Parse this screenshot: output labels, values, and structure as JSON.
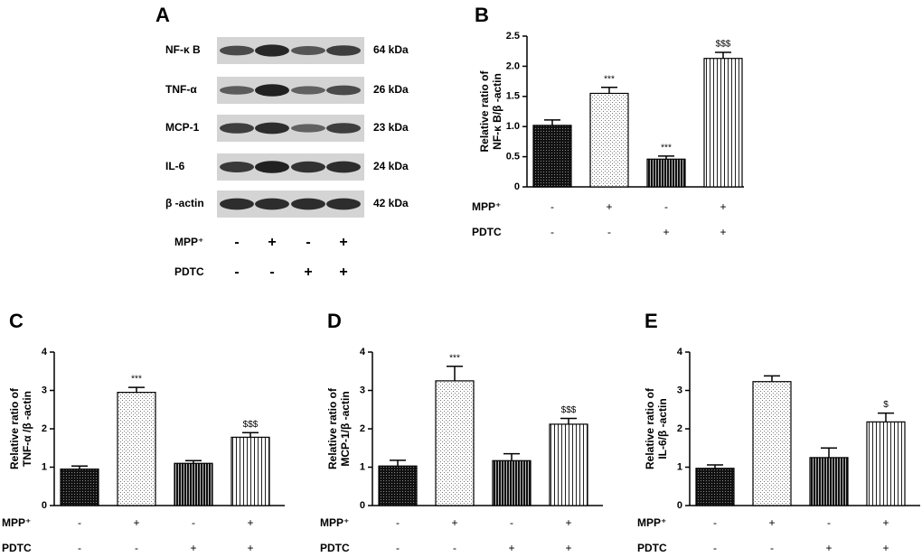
{
  "blot": {
    "panel": "A",
    "rows": [
      {
        "label": "NF-κ B",
        "size": "64 kDa"
      },
      {
        "label": "TNF-α",
        "size": "26 kDa"
      },
      {
        "label": "MCP-1",
        "size": "23 kDa"
      },
      {
        "label": "IL-6",
        "size": "24 kDa"
      },
      {
        "label": "β -actin",
        "size": "42 kDa"
      }
    ],
    "conditions": [
      {
        "name": "MPP⁺",
        "signs": [
          "-",
          "+",
          "-",
          "+"
        ]
      },
      {
        "name": "PDTC",
        "signs": [
          "-",
          "-",
          "+",
          "+"
        ]
      }
    ]
  },
  "chart_data": [
    {
      "type": "bar",
      "panel": "B",
      "ylabel": [
        "Relative ratio of",
        "NF-κ B/β -actin"
      ],
      "values": [
        1.02,
        1.55,
        0.46,
        2.13
      ],
      "errors": [
        0.09,
        0.1,
        0.05,
        0.1
      ],
      "annotations": [
        null,
        "***",
        "***",
        "$$$"
      ],
      "patterns": [
        "dark-dots",
        "light-dots",
        "dark-stripes",
        "light-stripes"
      ],
      "ylim": [
        0,
        2.5
      ],
      "yticks": [
        0,
        0.5,
        {
          "value": 1,
          "label": "1.0"
        },
        1.5,
        {
          "value": 2,
          "label": "2.0"
        },
        2.5
      ],
      "conditions": [
        {
          "name": "MPP⁺",
          "signs": [
            "-",
            "+",
            "-",
            "+"
          ]
        },
        {
          "name": "PDTC",
          "signs": [
            "-",
            "-",
            "+",
            "+"
          ]
        }
      ]
    },
    {
      "type": "bar",
      "panel": "C",
      "ylabel": [
        "Relative ratio of",
        "TNF-α /β -actin"
      ],
      "values": [
        0.95,
        2.95,
        1.1,
        1.78
      ],
      "errors": [
        0.08,
        0.13,
        0.07,
        0.12
      ],
      "annotations": [
        null,
        "***",
        null,
        "$$$"
      ],
      "patterns": [
        "dark-dots",
        "light-dots",
        "dark-stripes",
        "light-stripes"
      ],
      "ylim": [
        0,
        4
      ],
      "yticks": [
        0,
        1,
        2,
        3,
        4
      ],
      "conditions": [
        {
          "name": "MPP⁺",
          "signs": [
            "-",
            "+",
            "-",
            "+"
          ]
        },
        {
          "name": "PDTC",
          "signs": [
            "-",
            "-",
            "+",
            "+"
          ]
        }
      ]
    },
    {
      "type": "bar",
      "panel": "D",
      "ylabel": [
        "Relative ratio of",
        "MCP-1/β -actin"
      ],
      "values": [
        1.03,
        3.25,
        1.17,
        2.12
      ],
      "errors": [
        0.15,
        0.38,
        0.18,
        0.15
      ],
      "annotations": [
        null,
        "***",
        null,
        "$$$"
      ],
      "patterns": [
        "dark-dots",
        "light-dots",
        "dark-stripes",
        "light-stripes"
      ],
      "ylim": [
        0,
        4
      ],
      "yticks": [
        0,
        1,
        2,
        3,
        4
      ],
      "conditions": [
        {
          "name": "MPP⁺",
          "signs": [
            "-",
            "+",
            "-",
            "+"
          ]
        },
        {
          "name": "PDTC",
          "signs": [
            "-",
            "-",
            "+",
            "+"
          ]
        }
      ]
    },
    {
      "type": "bar",
      "panel": "E",
      "ylabel": [
        "Relative ratio of",
        "IL-6/β -actin"
      ],
      "values": [
        0.97,
        3.23,
        1.25,
        2.18
      ],
      "errors": [
        0.09,
        0.15,
        0.25,
        0.23
      ],
      "annotations": [
        null,
        null,
        null,
        "$"
      ],
      "patterns": [
        "dark-dots",
        "light-dots",
        "dark-stripes",
        "light-stripes"
      ],
      "ylim": [
        0,
        4
      ],
      "yticks": [
        0,
        1,
        2,
        3,
        4
      ],
      "conditions": [
        {
          "name": "MPP⁺",
          "signs": [
            "-",
            "+",
            "-",
            "+"
          ]
        },
        {
          "name": "PDTC",
          "signs": [
            "-",
            "-",
            "+",
            "+"
          ]
        }
      ]
    }
  ]
}
